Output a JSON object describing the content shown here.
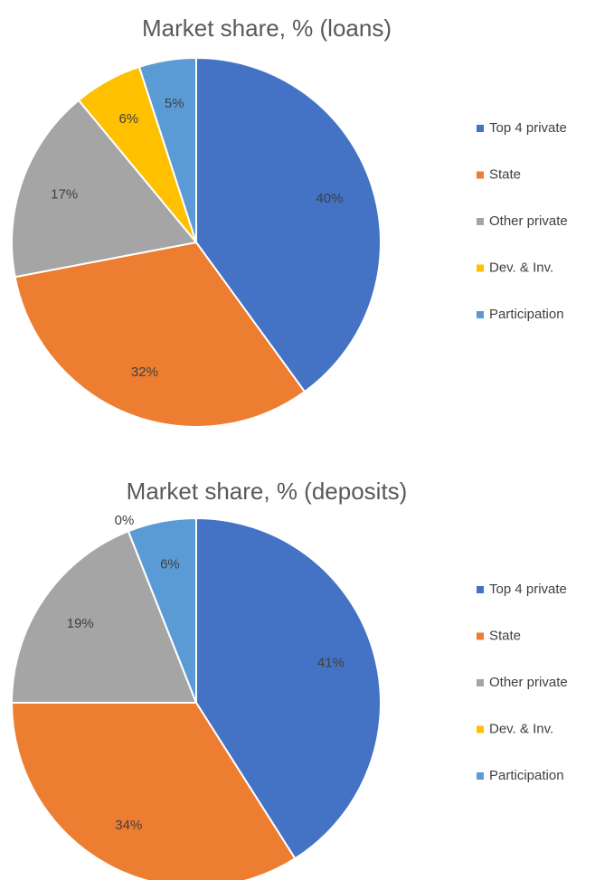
{
  "chart_data": [
    {
      "type": "pie",
      "title": "Market share, % (loans)",
      "categories": [
        "Top 4 private",
        "State",
        "Other private",
        "Dev. & Inv.",
        "Participation"
      ],
      "values": [
        40,
        32,
        17,
        6,
        5
      ],
      "value_labels": [
        "40%",
        "32%",
        "17%",
        "6%",
        "5%"
      ],
      "colors": [
        "#4472c4",
        "#ed7d31",
        "#a5a5a5",
        "#ffc000",
        "#5b9bd5"
      ],
      "legend": "right"
    },
    {
      "type": "pie",
      "title": "Market share, % (deposits)",
      "categories": [
        "Top 4 private",
        "State",
        "Other private",
        "Dev. & Inv.",
        "Participation"
      ],
      "values": [
        41,
        34,
        19,
        0,
        6
      ],
      "value_labels": [
        "41%",
        "34%",
        "19%",
        "0%",
        "6%"
      ],
      "colors": [
        "#4472c4",
        "#ed7d31",
        "#a5a5a5",
        "#ffc000",
        "#5b9bd5"
      ],
      "legend": "right"
    }
  ]
}
